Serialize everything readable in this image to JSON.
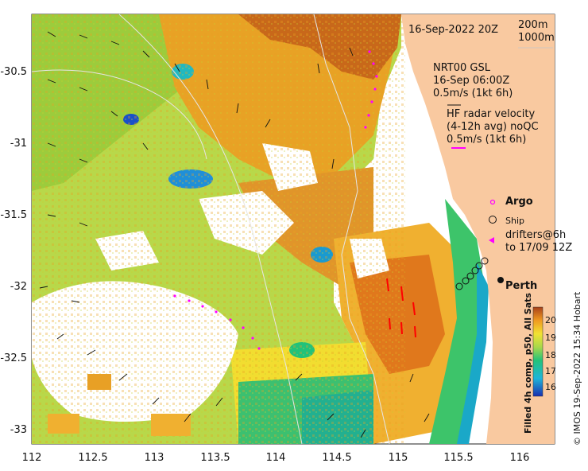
{
  "map": {
    "date_title": "16-Sep-2022 20Z",
    "isobath_200": "200m",
    "isobath_1000": "1000m",
    "model_lines": [
      "NRT00 GSL",
      "16-Sep 06:00Z",
      "0.5m/s (1kt 6h)"
    ],
    "hf_lines": [
      "HF radar velocity",
      "(4-12h avg) noQC",
      "0.5m/s (1kt 6h)"
    ],
    "argo_label": "Argo",
    "ship_label": "Ship",
    "drifter_lines": [
      "drifters@6h",
      "to 17/09 12Z"
    ],
    "city_label": "Perth",
    "colorbar_title": "Filled 4h comp, p50, All Sats",
    "credit": "© IMOS 19-Sep-2022 15:34 Hobart",
    "x_ticks": [
      "112",
      "112.5",
      "113",
      "113.5",
      "114",
      "114.5",
      "115",
      "115.5",
      "116"
    ],
    "y_ticks": [
      "-30.5",
      "-31",
      "-31.5",
      "-32",
      "-32.5",
      "-33"
    ],
    "colorbar_ticks": [
      "20",
      "19",
      "18",
      "17",
      "16"
    ],
    "colors": {
      "land": "#f9c9a0",
      "arrow_magenta": "#ff00ff",
      "drifter_red": "#ff0000"
    }
  }
}
